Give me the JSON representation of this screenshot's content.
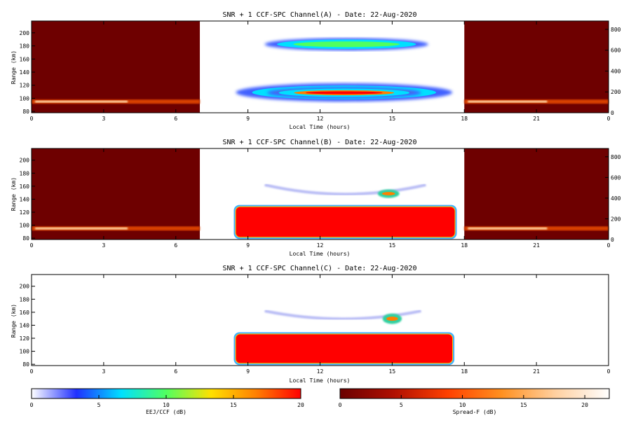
{
  "chart_data": [
    {
      "type": "heatmap",
      "title": "SNR + 1 CCF-SPC Channel(A) - Date: 22-Aug-2020",
      "xlabel": "Local Time (hours)",
      "ylabel": "Range (km)",
      "xlim": [
        0,
        24
      ],
      "ylim": [
        78,
        218
      ],
      "xticks": [
        "0",
        "3",
        "6",
        "9",
        "12",
        "15",
        "18",
        "21",
        "0"
      ],
      "yticks": [
        "80",
        "100",
        "120",
        "140",
        "160",
        "180",
        "200"
      ],
      "right_axis": {
        "ylim": [
          0,
          880
        ],
        "ticks": [
          "0",
          "200",
          "400",
          "600",
          "800"
        ]
      },
      "colormap": "EEJ/CCF",
      "night_panels": [
        [
          0,
          7
        ],
        [
          18,
          24
        ]
      ],
      "features": [
        {
          "name": "ccf-upper",
          "t": [
            9.7,
            16.5
          ],
          "range_km": [
            173,
            192
          ],
          "peak_db": 10
        },
        {
          "name": "ccf-lower-outer",
          "t": [
            8.5,
            17.5
          ],
          "range_km": [
            95,
            123
          ],
          "peak_db": 8
        },
        {
          "name": "ccf-lower-core",
          "t": [
            9.8,
            16.2
          ],
          "range_km": [
            100,
            117
          ],
          "peak_db": 20
        }
      ]
    },
    {
      "type": "heatmap",
      "title": "SNR + 1 CCF-SPC Channel(B) - Date: 22-Aug-2020",
      "xlabel": "Local Time (hours)",
      "ylabel": "Range (km)",
      "xlim": [
        0,
        24
      ],
      "ylim": [
        78,
        218
      ],
      "xticks": [
        "0",
        "3",
        "6",
        "9",
        "12",
        "15",
        "18",
        "21",
        "0"
      ],
      "yticks": [
        "80",
        "100",
        "120",
        "140",
        "160",
        "180",
        "200"
      ],
      "right_axis": {
        "ylim": [
          0,
          880
        ],
        "ticks": [
          "0",
          "200",
          "400",
          "600",
          "800"
        ]
      },
      "colormap": "EEJ/CCF",
      "night_panels": [
        [
          0,
          7
        ],
        [
          18,
          24
        ]
      ],
      "features": [
        {
          "name": "eej-saturated",
          "t": [
            8.5,
            17.6
          ],
          "range_km": [
            82,
            128
          ],
          "peak_db": 20
        },
        {
          "name": "echo-arc",
          "t": [
            9.7,
            16.4
          ],
          "range_km": [
            140,
            162
          ],
          "peak_db": 8
        },
        {
          "name": "echo-patch",
          "t": [
            14.4,
            15.3
          ],
          "range_km": [
            142,
            155
          ],
          "peak_db": 18
        }
      ]
    },
    {
      "type": "heatmap",
      "title": "SNR + 1 CCF-SPC Channel(C) - Date: 22-Aug-2020",
      "xlabel": "Local Time (hours)",
      "ylabel": "Range (km)",
      "xlim": [
        0,
        24
      ],
      "ylim": [
        78,
        218
      ],
      "xticks": [
        "0",
        "3",
        "6",
        "9",
        "12",
        "15",
        "18",
        "21",
        "0"
      ],
      "yticks": [
        "80",
        "100",
        "120",
        "140",
        "160",
        "180",
        "200"
      ],
      "colormap": "EEJ/CCF",
      "night_panels": [],
      "features": [
        {
          "name": "eej-saturated",
          "t": [
            8.5,
            17.5
          ],
          "range_km": [
            82,
            126
          ],
          "peak_db": 20
        },
        {
          "name": "echo-arc",
          "t": [
            9.7,
            16.2
          ],
          "range_km": [
            144,
            162
          ],
          "peak_db": 6
        },
        {
          "name": "echo-patch",
          "t": [
            14.6,
            15.4
          ],
          "range_km": [
            142,
            158
          ],
          "peak_db": 16
        }
      ]
    }
  ],
  "colorbars": [
    {
      "label": "EEJ/CCF (dB)",
      "range": [
        0,
        20
      ],
      "ticks": [
        "0",
        "5",
        "10",
        "15",
        "20"
      ],
      "colors": [
        "#ffffff",
        "#2030ff",
        "#00e0ff",
        "#50ff60",
        "#ffe000",
        "#ff8000",
        "#ff0000"
      ]
    },
    {
      "label": "Spread-F (dB)",
      "range": [
        0,
        22
      ],
      "ticks": [
        "0",
        "5",
        "10",
        "15",
        "20"
      ],
      "colors": [
        "#6a0000",
        "#b01000",
        "#ff4000",
        "#ff9020",
        "#ffd0a0",
        "#ffffff"
      ]
    }
  ],
  "panel_bg_color": "#6e0000"
}
